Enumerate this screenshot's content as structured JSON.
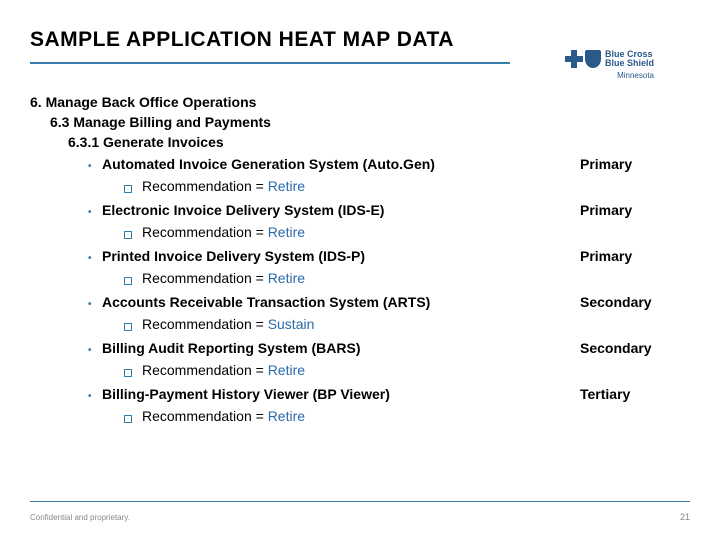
{
  "title": "SAMPLE APPLICATION HEAT MAP DATA",
  "logo": {
    "line1": "Blue Cross",
    "line2": "Blue Shield",
    "sub": "Minnesota"
  },
  "hierarchy": {
    "l1": "6. Manage Back Office Operations",
    "l2": "6.3 Manage Billing and Payments",
    "l3": "6.3.1 Generate Invoices"
  },
  "items": [
    {
      "name": "Automated Invoice Generation System (Auto.Gen)",
      "priority": "Primary",
      "recLabel": "Recommendation = ",
      "recVal": "Retire"
    },
    {
      "name": "Electronic Invoice Delivery System (IDS-E)",
      "priority": "Primary",
      "recLabel": "Recommendation = ",
      "recVal": "Retire"
    },
    {
      "name": "Printed Invoice Delivery System (IDS-P)",
      "priority": "Primary",
      "recLabel": "Recommendation = ",
      "recVal": "Retire"
    },
    {
      "name": "Accounts Receivable Transaction System (ARTS)",
      "priority": "Secondary",
      "recLabel": "Recommendation = ",
      "recVal": "Sustain"
    },
    {
      "name": "Billing Audit Reporting System (BARS)",
      "priority": "Secondary",
      "recLabel": "Recommendation = ",
      "recVal": "Retire"
    },
    {
      "name": "Billing-Payment History Viewer (BP Viewer)",
      "priority": "Tertiary",
      "recLabel": "Recommendation = ",
      "recVal": "Retire"
    }
  ],
  "footer": {
    "text": "Confidential and proprietary.",
    "page": "21"
  },
  "colors": {
    "accent": "#3a7ca8",
    "logo": "#2a5a8a",
    "text": "#000000",
    "footer": "#888888"
  }
}
